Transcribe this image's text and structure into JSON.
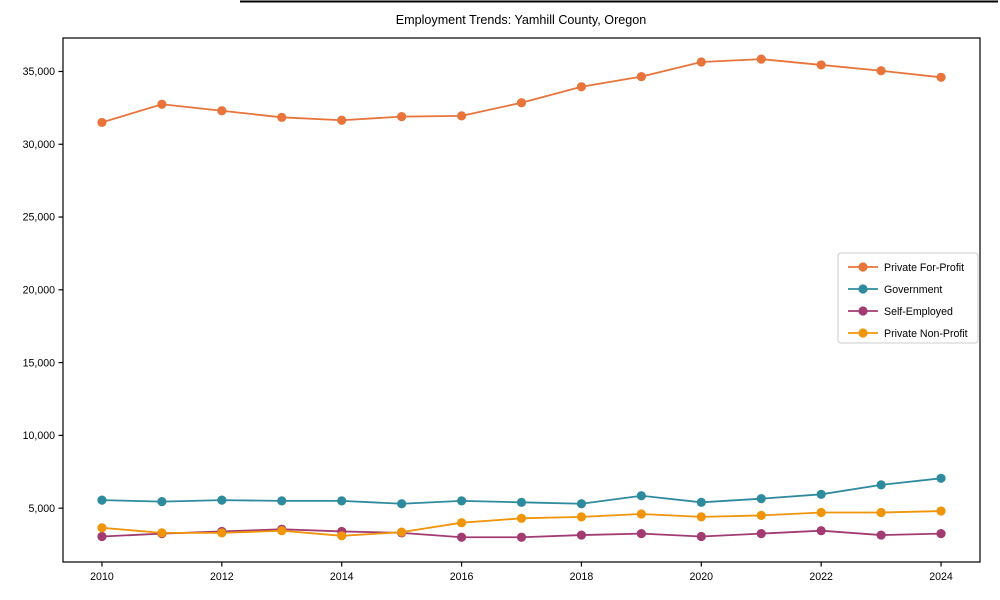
{
  "title": "Employment Trends: Yamhill County, Oregon",
  "chart_data": {
    "type": "line",
    "title": "Employment Trends: Yamhill County, Oregon",
    "xlabel": "",
    "ylabel": "",
    "grid": false,
    "legend_position": "center-right",
    "x": [
      2010,
      2011,
      2012,
      2013,
      2014,
      2015,
      2016,
      2017,
      2018,
      2019,
      2020,
      2021,
      2022,
      2023,
      2024
    ],
    "series": [
      {
        "name": "Private For-Profit",
        "color": "#E8743B",
        "values": [
          31500,
          32750,
          32300,
          31850,
          31650,
          31900,
          31950,
          32850,
          33950,
          34650,
          35650,
          35850,
          35450,
          35050,
          34600
        ]
      },
      {
        "name": "Government",
        "color": "#2E8B9E",
        "values": [
          5550,
          5450,
          5550,
          5500,
          5500,
          5300,
          5500,
          5400,
          5300,
          5850,
          5400,
          5650,
          5950,
          6600,
          7050
        ]
      },
      {
        "name": "Self-Employed",
        "color": "#A23B72",
        "values": [
          3050,
          3250,
          3400,
          3550,
          3400,
          3300,
          3000,
          3000,
          3150,
          3250,
          3050,
          3250,
          3450,
          3150,
          3250
        ]
      },
      {
        "name": "Private Non-Profit",
        "color": "#F0940A",
        "values": [
          3650,
          3300,
          3300,
          3450,
          3100,
          3350,
          4000,
          4300,
          4400,
          4600,
          4400,
          4500,
          4700,
          4700,
          4800
        ]
      }
    ],
    "xticks": [
      2010,
      2012,
      2014,
      2016,
      2018,
      2020,
      2022,
      2024
    ],
    "xtick_labels": [
      "2010",
      "2012",
      "2014",
      "2016",
      "2018",
      "2020",
      "2022",
      "2024"
    ],
    "yticks": [
      5000,
      10000,
      15000,
      20000,
      25000,
      30000,
      35000
    ],
    "ytick_labels": [
      "5,000",
      "10,000",
      "15,000",
      "20,000",
      "25,000",
      "30,000",
      "35,000"
    ],
    "xlim": [
      2009.35,
      2024.65
    ],
    "ylim": [
      1300,
      37300
    ],
    "axis_color": "#000000",
    "legend_border_color": "#cccccc",
    "legend_bg_color": "#ffffff"
  }
}
